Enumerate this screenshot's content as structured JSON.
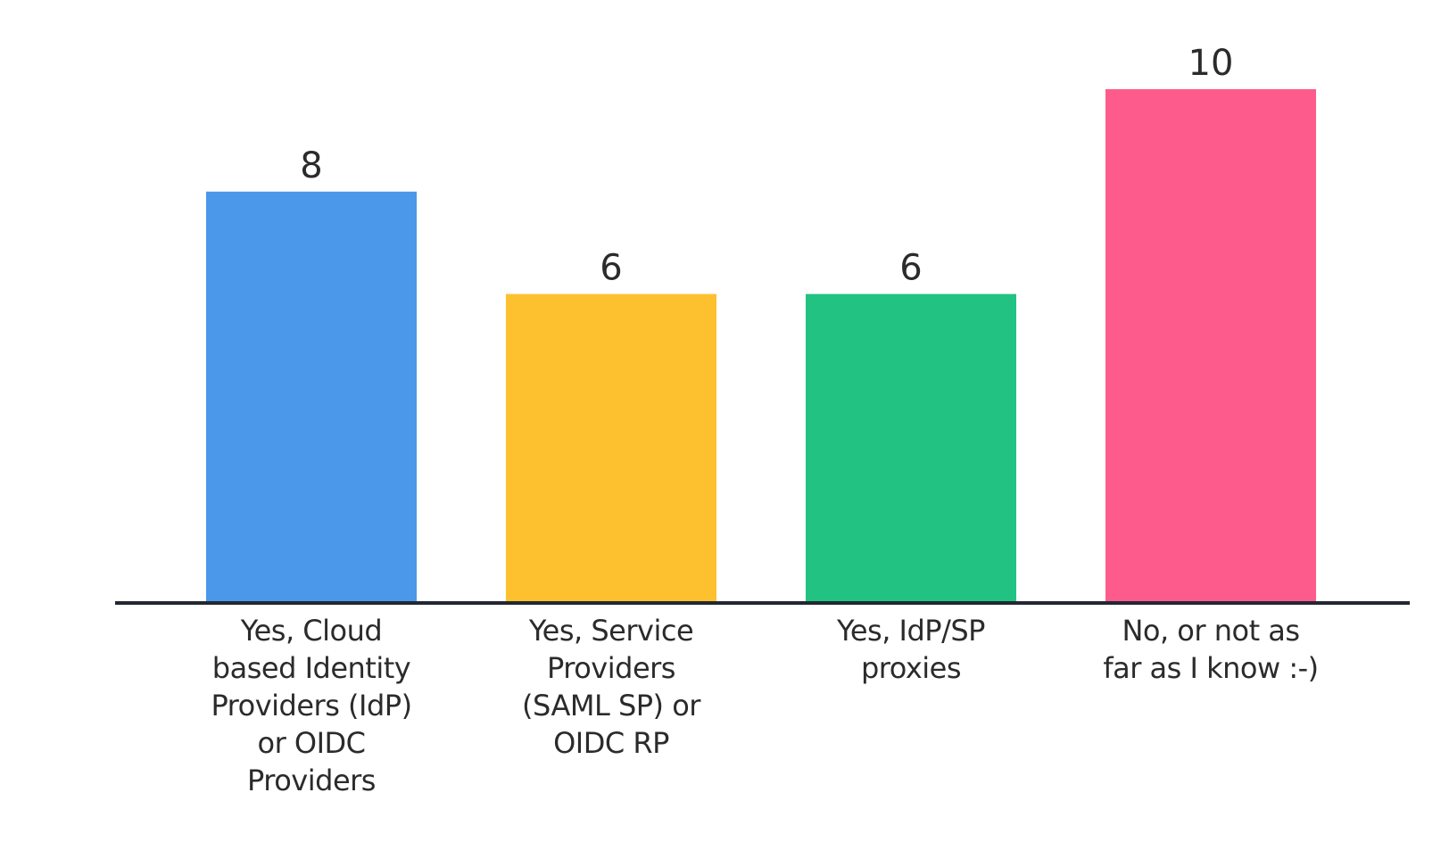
{
  "chart_data": {
    "type": "bar",
    "categories": [
      "Yes, Cloud based Identity Providers (IdP) or OIDC Providers",
      "Yes, Service Providers (SAML SP) or OIDC RP",
      "Yes, IdP/SP proxies",
      "No, or not as far as I know :-)"
    ],
    "values": [
      8,
      6,
      6,
      10
    ],
    "colors": [
      "#4b97ea",
      "#fdc12f",
      "#22c283",
      "#fe5b8d"
    ],
    "ylim": [
      0,
      10
    ],
    "grid": false,
    "legend": "none",
    "value_labels": true
  }
}
